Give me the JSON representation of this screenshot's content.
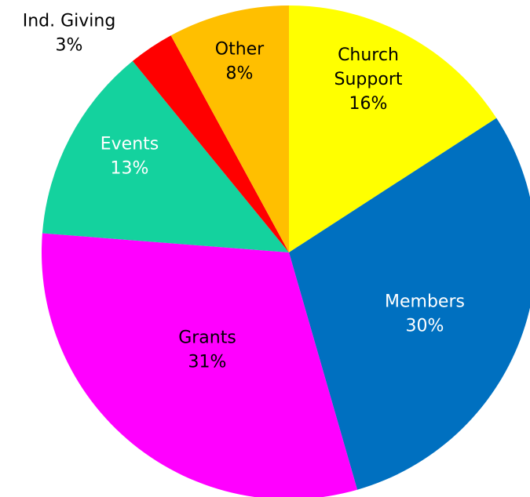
{
  "chart_data": {
    "type": "pie",
    "title": "",
    "slices": [
      {
        "label_lines": [
          "Church",
          "Support"
        ],
        "percent_label": "16%",
        "value": 16,
        "color": "#ffff00",
        "text_color": "#000000"
      },
      {
        "label_lines": [
          "Members"
        ],
        "percent_label": "30%",
        "value": 30,
        "color": "#0070c0",
        "text_color": "#ffffff"
      },
      {
        "label_lines": [
          "Grants"
        ],
        "percent_label": "31%",
        "value": 31,
        "color": "#ff00ff",
        "text_color": "#000000"
      },
      {
        "label_lines": [
          "Events"
        ],
        "percent_label": "13%",
        "value": 13,
        "color": "#14d29e",
        "text_color": "#ffffff"
      },
      {
        "label_lines": [
          "Ind. Giving"
        ],
        "percent_label": "3%",
        "value": 3,
        "color": "#ff0000",
        "text_color": "#000000",
        "label_outside": true
      },
      {
        "label_lines": [
          "Other"
        ],
        "percent_label": "8%",
        "value": 8,
        "color": "#ffbf00",
        "text_color": "#000000"
      }
    ],
    "start": "12 o'clock",
    "direction": "clockwise",
    "legend": "none"
  }
}
